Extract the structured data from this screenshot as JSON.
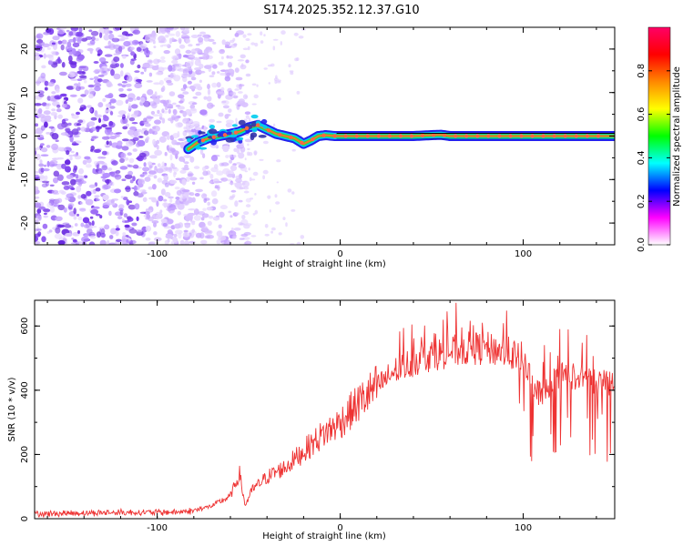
{
  "title": "S174.2025.352.12.37.G10",
  "colors": {
    "snr_line": "#ee3333",
    "signal_center": "#cc4466",
    "axis": "#000000"
  },
  "chart_data": [
    {
      "type": "heatmap",
      "name": "spectrogram",
      "xlabel": "Height of straight line (km)",
      "ylabel": "Frequency (Hz)",
      "xlim": [
        -167,
        150
      ],
      "ylim": [
        -25,
        25
      ],
      "x_ticks": [
        -100,
        0,
        100
      ],
      "x_tick_labels": [
        "-100",
        "0",
        "100"
      ],
      "y_ticks": [
        -20,
        -10,
        0,
        10,
        20
      ],
      "y_tick_labels": [
        "-20",
        "-10",
        "0",
        "10",
        "20"
      ],
      "colorbar": {
        "label": "Normalized spectral amplitude",
        "range": [
          0,
          1
        ],
        "ticks": [
          0.0,
          0.2,
          0.4,
          0.6,
          0.8
        ],
        "tick_labels": [
          "0.0",
          "0.2",
          "0.4",
          "0.6",
          "0.8"
        ],
        "colormap": [
          "#ffffff",
          "#ff00ff",
          "#0000ff",
          "#00ffff",
          "#00ff00",
          "#ffff00",
          "#ff8800",
          "#ff0000",
          "#ff0066"
        ]
      },
      "noise_region_x": [
        -167,
        -80
      ],
      "signal_track": {
        "x": [
          -83,
          -78,
          -72,
          -66,
          -60,
          -55,
          -50,
          -45,
          -40,
          -35,
          -30,
          -25,
          -20,
          -16,
          -12,
          -8,
          -3,
          0,
          20,
          40,
          55,
          60,
          80,
          100,
          120,
          150
        ],
        "freq": [
          -3,
          -1.5,
          -0.5,
          0,
          0.5,
          1,
          2,
          2.5,
          1.5,
          0.5,
          0,
          -0.5,
          -1.8,
          -1,
          0,
          0.2,
          0,
          0,
          0,
          0,
          0.3,
          0,
          0,
          0,
          0,
          0
        ]
      }
    },
    {
      "type": "line",
      "name": "snr",
      "xlabel": "Height of straight line (km)",
      "ylabel": "SNR (10 * v/v)",
      "xlim": [
        -167,
        150
      ],
      "ylim": [
        0,
        680
      ],
      "x_ticks": [
        -100,
        0,
        100
      ],
      "x_tick_labels": [
        "-100",
        "0",
        "100"
      ],
      "y_ticks": [
        0,
        200,
        400,
        600
      ],
      "y_tick_labels": [
        "0",
        "200",
        "400",
        "600"
      ],
      "series": [
        {
          "name": "SNR",
          "x": [
            -167,
            -140,
            -110,
            -90,
            -80,
            -70,
            -60,
            -55,
            -52,
            -48,
            -40,
            -30,
            -20,
            -10,
            0,
            10,
            20,
            30,
            40,
            50,
            60,
            70,
            80,
            90,
            100,
            105,
            110,
            115,
            120,
            130,
            140,
            150
          ],
          "y": [
            15,
            18,
            20,
            20,
            25,
            40,
            70,
            140,
            40,
            90,
            130,
            160,
            210,
            260,
            300,
            360,
            410,
            460,
            490,
            510,
            520,
            530,
            530,
            520,
            500,
            420,
            380,
            420,
            450,
            440,
            430,
            420
          ]
        }
      ]
    }
  ]
}
